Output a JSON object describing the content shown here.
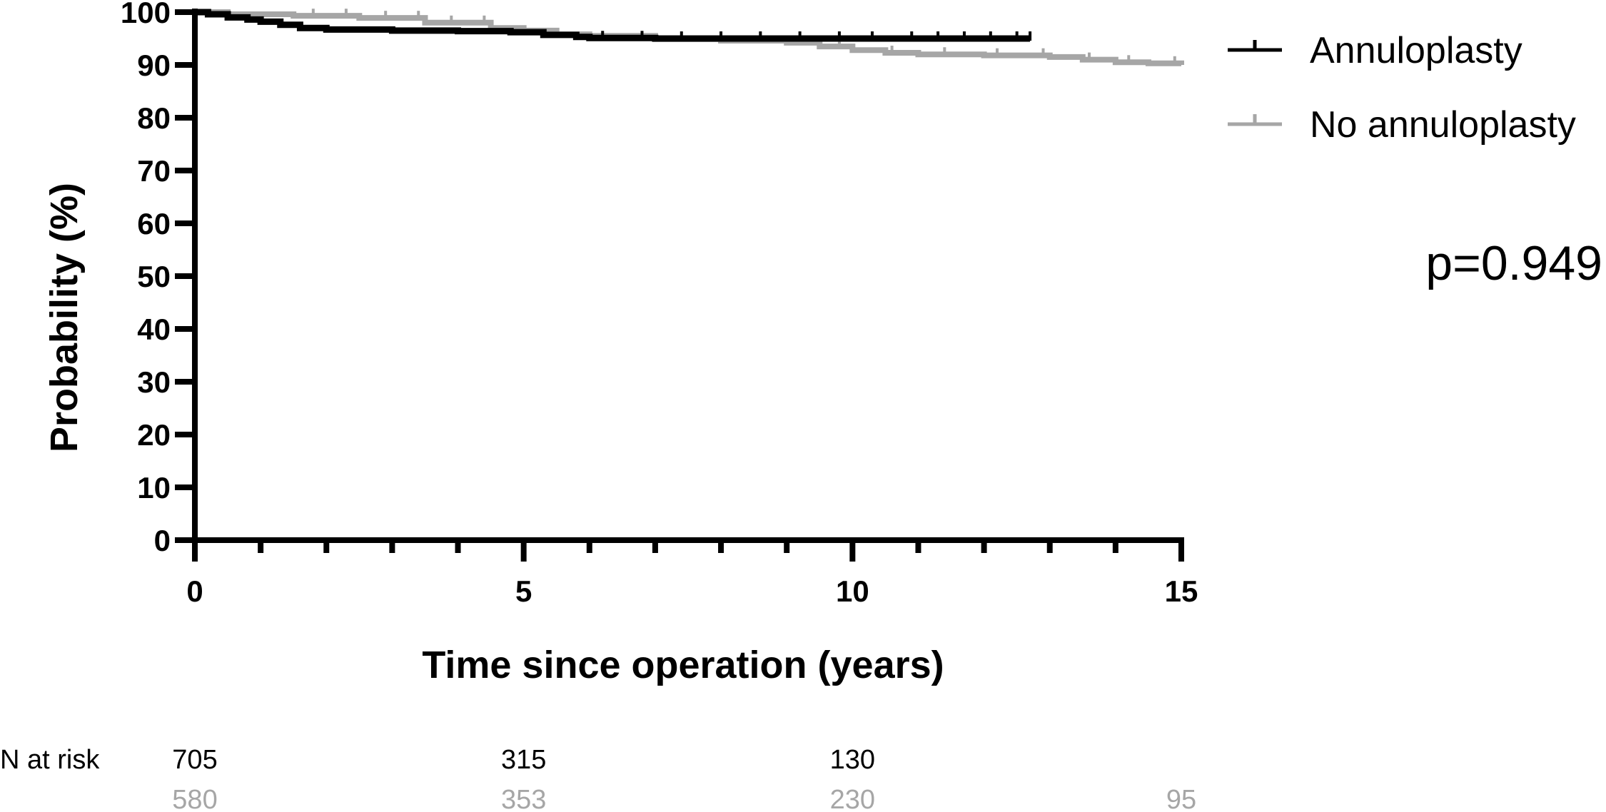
{
  "chart_data": {
    "type": "line",
    "subtype": "kaplan-meier",
    "xlabel": "Time since operation (years)",
    "ylabel": "Probability (%)",
    "xlim": [
      0,
      15
    ],
    "ylim": [
      0,
      100
    ],
    "x_ticks": [
      "0",
      "5",
      "10",
      "15"
    ],
    "y_ticks": [
      "0",
      "10",
      "20",
      "30",
      "40",
      "50",
      "60",
      "70",
      "80",
      "90",
      "100"
    ],
    "grid": false,
    "legend_position": "top-right",
    "annotation": "p=0.949",
    "series": [
      {
        "name": "Annuloplasty",
        "color": "#000000",
        "x": [
          0,
          0.2,
          0.5,
          0.8,
          1.0,
          1.3,
          1.6,
          2.0,
          3.0,
          4.0,
          4.8,
          5.3,
          5.8,
          6.0,
          7.0,
          8.0,
          9.0,
          10.0,
          11.0,
          12.0,
          12.7
        ],
        "y": [
          100,
          99.6,
          99.0,
          98.6,
          98.2,
          97.6,
          97.0,
          96.7,
          96.5,
          96.4,
          96.2,
          95.7,
          95.3,
          95.1,
          95.0,
          95.0,
          95.0,
          95.0,
          95.0,
          95.0,
          95.0
        ],
        "censor_x": [
          6.2,
          6.8,
          7.4,
          8.0,
          8.6,
          9.2,
          9.8,
          10.3,
          10.9,
          11.3,
          11.7,
          12.1,
          12.5,
          12.7
        ]
      },
      {
        "name": "No annuloplasty",
        "color": "#a6a6a6",
        "x": [
          0,
          0.5,
          1.5,
          2.5,
          3.5,
          4.5,
          5.0,
          5.5,
          6.0,
          7.0,
          8.0,
          9.0,
          9.5,
          10.0,
          10.5,
          11.0,
          12.0,
          13.0,
          13.5,
          14.0,
          14.5,
          15.0
        ],
        "y": [
          100,
          99.6,
          99.3,
          98.9,
          98.0,
          97.0,
          96.5,
          95.8,
          95.5,
          94.9,
          94.6,
          94.2,
          93.5,
          92.8,
          92.3,
          92.0,
          91.8,
          91.5,
          91.0,
          90.5,
          90.3,
          90.0
        ],
        "censor_x": [
          1.8,
          2.3,
          2.9,
          3.4,
          3.9,
          4.4,
          9.8,
          10.6,
          11.4,
          12.2,
          12.9,
          13.6,
          14.2,
          14.9
        ]
      }
    ],
    "at_risk": {
      "label": "N at risk",
      "times": [
        0,
        5,
        10,
        15
      ],
      "rows": [
        {
          "name": "Annuloplasty",
          "color": "#000000",
          "values": [
            "705",
            "315",
            "130",
            ""
          ]
        },
        {
          "name": "No annuloplasty",
          "color": "#a6a6a6",
          "values": [
            "580",
            "353",
            "230",
            "95"
          ]
        }
      ]
    }
  }
}
